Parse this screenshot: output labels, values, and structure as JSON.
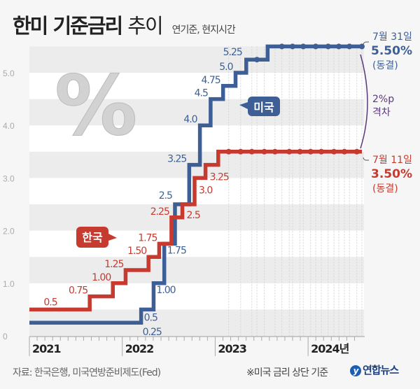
{
  "header": {
    "title_bold": "한미 기준금리",
    "title_light": "추이",
    "subtitle": "연기준, 현지시간"
  },
  "footer": {
    "source": "자료: 한국은행, 미국연방준비제도(Fed)",
    "note": "※미국 금리 상단 기준",
    "logo": "연합뉴스"
  },
  "colors": {
    "us": "#3d5f95",
    "korea": "#c63a2f",
    "gap": "#5a3a7a",
    "band": "#ececec"
  },
  "chart_data": {
    "type": "line",
    "step": true,
    "ylim": [
      0,
      5.5
    ],
    "yticks": [
      "0",
      "1.0",
      "2.0",
      "3.0",
      "4.0",
      "5.0"
    ],
    "xticks": [
      "2021",
      "2022",
      "2023",
      "2024년"
    ],
    "xlim": [
      "2021-01-01",
      "2024-07-31"
    ],
    "series": [
      {
        "name": "미국",
        "key": "us",
        "steps": [
          [
            "2021-01-01",
            0.25
          ],
          [
            "2022-03-16",
            0.5
          ],
          [
            "2022-05-04",
            1.0
          ],
          [
            "2022-06-15",
            1.75
          ],
          [
            "2022-07-27",
            2.5
          ],
          [
            "2022-09-21",
            3.25
          ],
          [
            "2022-11-02",
            4.0
          ],
          [
            "2022-12-14",
            4.5
          ],
          [
            "2023-02-01",
            4.75
          ],
          [
            "2023-03-22",
            5.0
          ],
          [
            "2023-05-03",
            5.25
          ],
          [
            "2023-07-26",
            5.5
          ]
        ],
        "labels": [
          "0.25",
          "0.5",
          "1.00",
          "1.75",
          "2.5",
          "3.25",
          "4.0",
          "4.5",
          "4.75",
          "5.0",
          "5.25",
          "5.50"
        ],
        "holds": [
          "2023-06-14",
          "2023-09-20",
          "2023-11-01",
          "2023-12-13",
          "2024-01-31",
          "2024-03-20",
          "2024-05-01",
          "2024-06-12",
          "2024-07-31"
        ]
      },
      {
        "name": "한국",
        "key": "korea",
        "steps": [
          [
            "2021-01-01",
            0.5
          ],
          [
            "2021-08-26",
            0.75
          ],
          [
            "2021-11-25",
            1.0
          ],
          [
            "2022-01-14",
            1.25
          ],
          [
            "2022-04-14",
            1.5
          ],
          [
            "2022-05-26",
            1.75
          ],
          [
            "2022-07-13",
            2.25
          ],
          [
            "2022-08-25",
            2.5
          ],
          [
            "2022-10-12",
            3.0
          ],
          [
            "2022-11-24",
            3.25
          ],
          [
            "2023-01-13",
            3.5
          ]
        ],
        "labels": [
          "0.5",
          "0.75",
          "1.00",
          "1.25",
          "1.50",
          "1.75",
          "2.25",
          "2.5",
          "3.0",
          "3.25",
          "3.50"
        ],
        "holds": [
          "2023-02-23",
          "2023-04-11",
          "2023-05-25",
          "2023-07-13",
          "2023-08-24",
          "2023-10-19",
          "2023-11-30",
          "2024-01-11",
          "2024-02-22",
          "2024-04-12",
          "2024-05-23",
          "2024-07-11"
        ]
      }
    ],
    "annotations": {
      "us": {
        "date": "7월 31일",
        "value": "5.50%",
        "status": "(동결)"
      },
      "korea": {
        "date": "7월 11일",
        "value": "3.50%",
        "status": "(동결)"
      },
      "gap": {
        "line1": "2%p",
        "line2": "격차"
      },
      "us_tag": "미국",
      "korea_tag": "한국"
    }
  }
}
